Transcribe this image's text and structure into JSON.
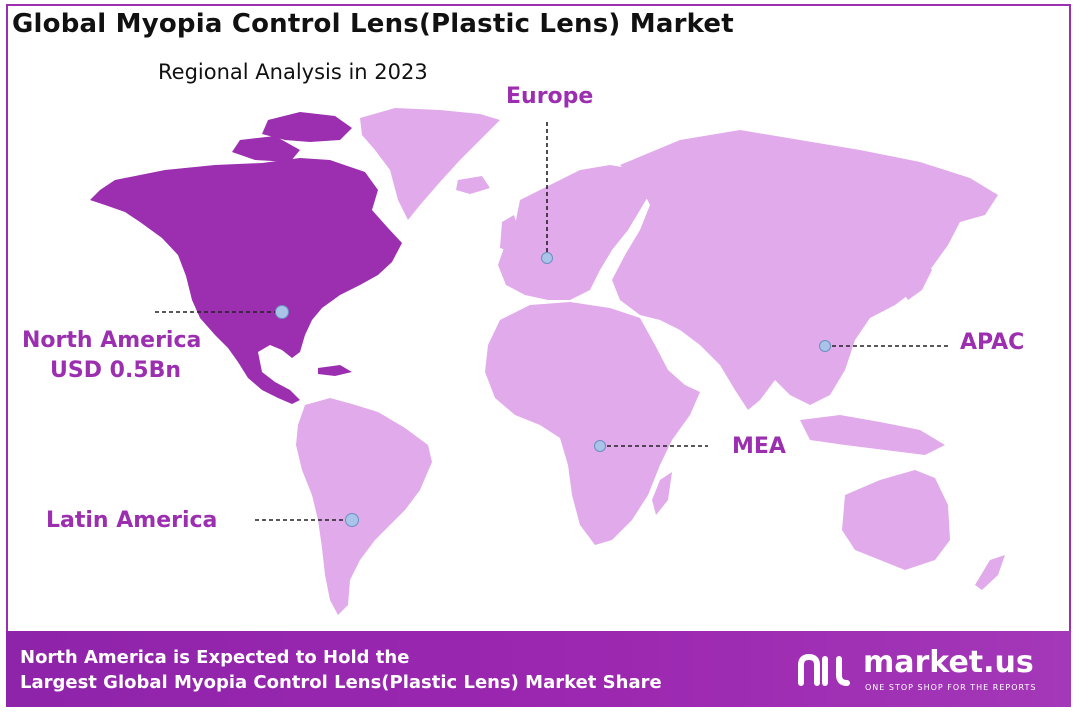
{
  "header": {
    "title": "Global Myopia Control Lens(Plastic Lens) Market",
    "subtitle": "Regional Analysis in 2023"
  },
  "regions": {
    "north_america_name": "North America",
    "north_america_value": "USD  0.5Bn",
    "europe": "Europe",
    "apac": "APAC",
    "mea": "MEA",
    "latin_america": "Latin America"
  },
  "footer": {
    "line1": "North America is Expected to Hold the",
    "line2": "Largest Global Myopia Control Lens(Plastic Lens) Market Share"
  },
  "brand": {
    "name": "market.us",
    "tagline": "ONE STOP SHOP FOR THE REPORTS"
  },
  "colors": {
    "highlight": "#9b2fb0",
    "land": "#e1aaeb",
    "marker": "#a9c4e8",
    "footer": "#9c27b0"
  }
}
